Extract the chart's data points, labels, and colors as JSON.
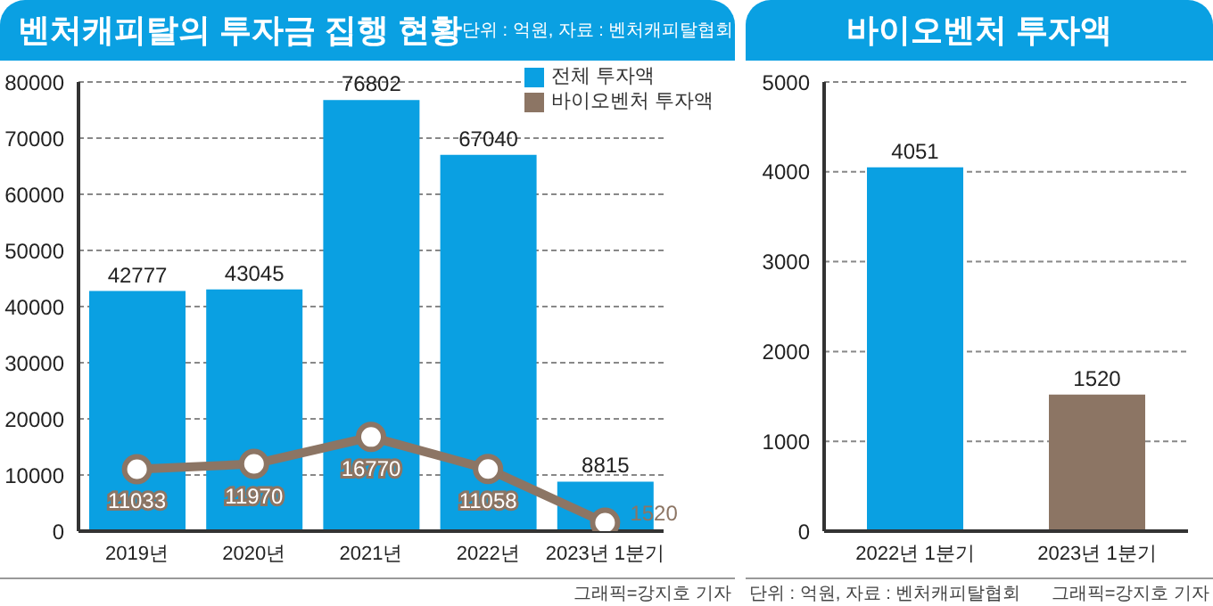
{
  "chart_data": [
    {
      "type": "bar",
      "title": "벤처캐피탈의 투자금 집행 현황",
      "subtitle": "단위 : 억원, 자료 : 벤처캐피탈협회",
      "categories": [
        "2019년",
        "2020년",
        "2021년",
        "2022년",
        "2023년 1분기"
      ],
      "series": [
        {
          "name": "전체 투자액",
          "type": "bar",
          "color": "#0aa0e2",
          "values": [
            42777,
            43045,
            76802,
            67040,
            8815
          ]
        },
        {
          "name": "바이오벤처 투자액",
          "type": "line",
          "color": "#8c7564",
          "marker": "circle",
          "values": [
            11033,
            11970,
            16770,
            11058,
            1520
          ]
        }
      ],
      "ylim": [
        0,
        80000
      ],
      "yticks": [
        0,
        10000,
        20000,
        30000,
        40000,
        50000,
        60000,
        70000,
        80000
      ],
      "grid": "y",
      "legend": "top right",
      "data_labels": true,
      "annotations": [
        "그래픽=강지호 기자"
      ]
    },
    {
      "type": "bar",
      "title": "바이오벤처 투자액",
      "categories": [
        "2022년 1분기",
        "2023년 1분기"
      ],
      "values": [
        4051,
        1520
      ],
      "colors": [
        "#0aa0e2",
        "#8c7564"
      ],
      "ylim": [
        0,
        5000
      ],
      "yticks": [
        0,
        1000,
        2000,
        3000,
        4000,
        5000
      ],
      "grid": "y",
      "data_labels": true,
      "annotations": [
        "단위 : 억원, 자료 : 벤처캐피탈협회",
        "그래픽=강지호 기자"
      ]
    }
  ]
}
